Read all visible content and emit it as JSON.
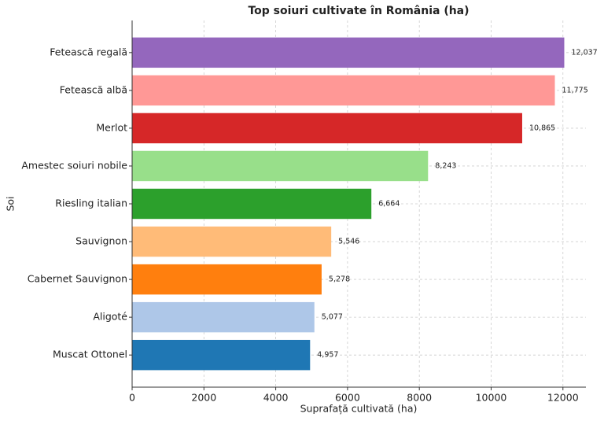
{
  "chart_data": {
    "type": "barh",
    "title": "Top soiuri cultivate în România (ha)",
    "x_label": "Suprafață cultivată (ha)",
    "y_label": "Soi",
    "categories": [
      "Fetească regală",
      "Fetească albă",
      "Merlot",
      "Amestec soiuri nobile",
      "Riesling italian",
      "Sauvignon",
      "Cabernet Sauvignon",
      "Aligoté",
      "Muscat Ottonel"
    ],
    "values": [
      12037,
      11775,
      10865,
      8243,
      6664,
      5546,
      5278,
      5077,
      4957
    ],
    "value_labels": [
      "12,037",
      "11,775",
      "10,865",
      "8,243",
      "6,664",
      "5,546",
      "5,278",
      "5,077",
      "4,957"
    ],
    "colors": [
      "#9467bd",
      "#ff9896",
      "#d62728",
      "#98df8a",
      "#2ca02c",
      "#ffbb78",
      "#ff7f0e",
      "#aec7e8",
      "#1f77b4"
    ],
    "xlim": [
      0,
      12640
    ],
    "xticks": [
      0,
      2000,
      4000,
      6000,
      8000,
      10000,
      12000
    ],
    "grid": true
  }
}
